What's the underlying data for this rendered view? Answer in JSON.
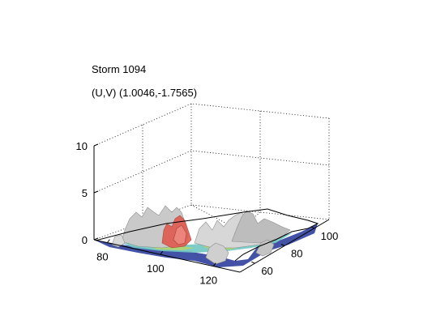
{
  "chart_data": {
    "type": "surface3d",
    "title_lines": [
      "Storm 1094",
      "(U,V) (1.0046,-1.7565)"
    ],
    "z_axis": {
      "ticks": [
        0,
        5,
        10
      ],
      "range": [
        0,
        10
      ]
    },
    "x_axis": {
      "ticks": [
        80,
        100,
        120
      ],
      "range": [
        75,
        130
      ]
    },
    "y_axis": {
      "ticks": [
        60,
        80,
        100
      ],
      "range": [
        50,
        110
      ]
    },
    "grid": true,
    "box": "open 3D axes with dotted grid",
    "colors": {
      "surface": "#c9c9c9",
      "surface_edge": "#8e8e8e",
      "storm_core": "#e05a4e",
      "base_blue": "#2f3f9c",
      "base_cyan": "#6fc7c2",
      "base_green": "#b4d66a",
      "outline": "#000000"
    }
  }
}
